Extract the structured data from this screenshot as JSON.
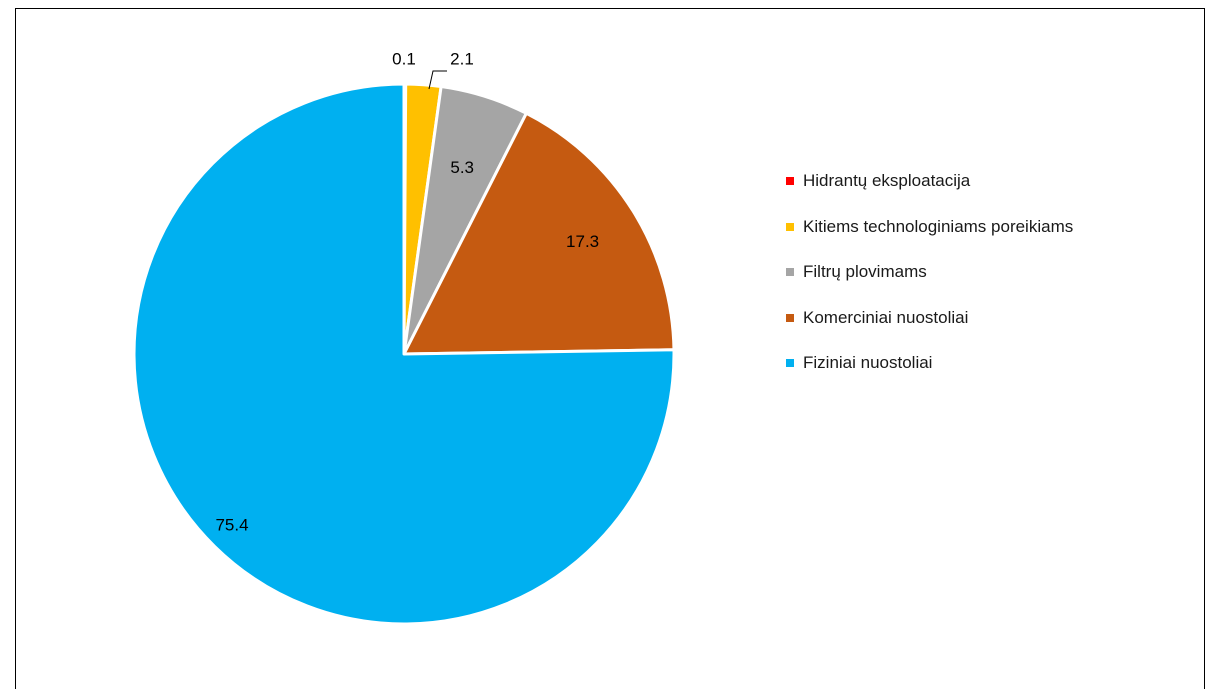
{
  "chart_data": {
    "type": "pie",
    "title": "",
    "series": [
      {
        "values": [
          0.1,
          2.1,
          5.3,
          17.3,
          75.4
        ],
        "labels": [
          "Hidrantų eksploatacija",
          "Kitiems technologiniams poreikiams",
          "Filtrų plovimams",
          "Komerciniai nuostoliai",
          "Fiziniai nuostoliai"
        ],
        "data_labels": [
          "0.1",
          "2.1",
          "5.3",
          "17.3",
          "75.4"
        ],
        "colors": [
          "#FF0000",
          "#FFC000",
          "#A5A5A5",
          "#C55A11",
          "#00B0F0"
        ]
      }
    ],
    "start_angle": "top (12 o'clock)",
    "direction": "clockwise",
    "legend_position": "right"
  },
  "legend": {
    "items": [
      {
        "label": "Hidrantų eksploatacija",
        "color": "#FF0000"
      },
      {
        "label": "Kitiems technologiniams poreikiams",
        "color": "#FFC000"
      },
      {
        "label": "Filtrų plovimams",
        "color": "#A5A5A5"
      },
      {
        "label": "Komerciniai nuostoliai",
        "color": "#C55A11"
      },
      {
        "label": "Fiziniai nuostoliai",
        "color": "#00B0F0"
      }
    ]
  }
}
